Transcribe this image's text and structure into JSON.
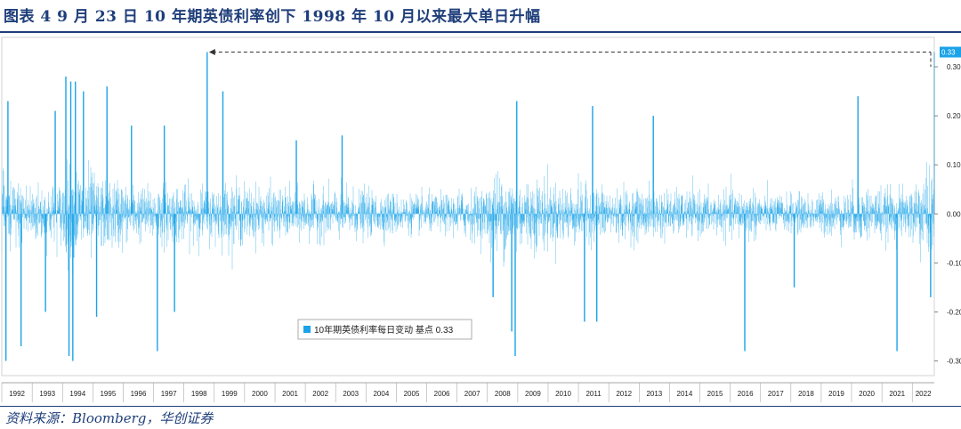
{
  "figure": {
    "title": "图表 4   9 月 23 日 10 年期英债利率创下 1998 年 10 月以来最大单日升幅",
    "source": "资料来源：Bloomberg，华创证券"
  },
  "colors": {
    "series": "#1aa3e8",
    "title": "#1f3e7a",
    "last_label_bg": "#1aa3e8"
  },
  "chart_data": {
    "type": "bar",
    "title": "",
    "xlabel": "",
    "ylabel": "",
    "ylim": [
      -0.33,
      0.36
    ],
    "yticks": [
      -0.3,
      -0.2,
      -0.1,
      0.0,
      0.1,
      0.2,
      0.3
    ],
    "ytick_labels": [
      "-0.30",
      "-0.20",
      "-0.10",
      "0.00",
      "0.10",
      "0.20",
      "0.30"
    ],
    "y_axis_position": "right",
    "grid": false,
    "x_range": [
      "1992-01-01",
      "2022-09-23"
    ],
    "x_tick_labels": [
      "1992",
      "1993",
      "1994",
      "1995",
      "1996",
      "1997",
      "1998",
      "1999",
      "2000",
      "2001",
      "2002",
      "2003",
      "2004",
      "2005",
      "2006",
      "2007",
      "2008",
      "2009",
      "2010",
      "2011",
      "2012",
      "2013",
      "2014",
      "2015",
      "2016",
      "2017",
      "2018",
      "2019",
      "2020",
      "2021",
      "2022"
    ],
    "legend": {
      "label": "10年期英债利率每日变动  基点 0.33",
      "placement": "bottom-center"
    },
    "last_value_label": "0.33",
    "series": [
      {
        "name": "10年期英债利率每日变动  基点",
        "volatility_by_year": [
          0.06,
          0.055,
          0.085,
          0.065,
          0.05,
          0.055,
          0.05,
          0.055,
          0.05,
          0.045,
          0.045,
          0.045,
          0.04,
          0.035,
          0.035,
          0.045,
          0.075,
          0.065,
          0.055,
          0.05,
          0.045,
          0.045,
          0.04,
          0.04,
          0.045,
          0.035,
          0.035,
          0.04,
          0.05,
          0.045,
          0.075
        ],
        "notable_points": [
          {
            "date": "1992-02-20",
            "value": -0.3
          },
          {
            "date": "1992-03-15",
            "value": 0.23
          },
          {
            "date": "1992-08-20",
            "value": -0.27
          },
          {
            "date": "1993-06-10",
            "value": -0.2
          },
          {
            "date": "1993-10-05",
            "value": 0.21
          },
          {
            "date": "1994-02-10",
            "value": 0.28
          },
          {
            "date": "1994-03-20",
            "value": -0.29
          },
          {
            "date": "1994-04-10",
            "value": 0.27
          },
          {
            "date": "1994-05-05",
            "value": -0.3
          },
          {
            "date": "1994-06-05",
            "value": 0.27
          },
          {
            "date": "1994-09-10",
            "value": 0.25
          },
          {
            "date": "1995-02-15",
            "value": -0.21
          },
          {
            "date": "1995-06-20",
            "value": 0.26
          },
          {
            "date": "1996-04-10",
            "value": 0.18
          },
          {
            "date": "1997-02-15",
            "value": -0.28
          },
          {
            "date": "1997-05-10",
            "value": 0.18
          },
          {
            "date": "1997-09-10",
            "value": -0.2
          },
          {
            "date": "1998-10-08",
            "value": 0.33
          },
          {
            "date": "1999-04-15",
            "value": 0.25
          },
          {
            "date": "2001-09-15",
            "value": 0.15
          },
          {
            "date": "2003-03-20",
            "value": 0.16
          },
          {
            "date": "2008-03-10",
            "value": -0.17
          },
          {
            "date": "2008-10-20",
            "value": -0.24
          },
          {
            "date": "2008-12-01",
            "value": -0.29
          },
          {
            "date": "2008-12-20",
            "value": 0.23
          },
          {
            "date": "2011-03-15",
            "value": -0.22
          },
          {
            "date": "2011-06-20",
            "value": 0.22
          },
          {
            "date": "2011-08-10",
            "value": -0.22
          },
          {
            "date": "2013-06-20",
            "value": 0.2
          },
          {
            "date": "2016-06-25",
            "value": -0.28
          },
          {
            "date": "2018-02-10",
            "value": -0.15
          },
          {
            "date": "2020-03-18",
            "value": 0.24
          },
          {
            "date": "2021-07-01",
            "value": -0.28
          },
          {
            "date": "2022-08-10",
            "value": -0.17
          },
          {
            "date": "2022-09-23",
            "value": 0.33
          }
        ]
      }
    ]
  }
}
